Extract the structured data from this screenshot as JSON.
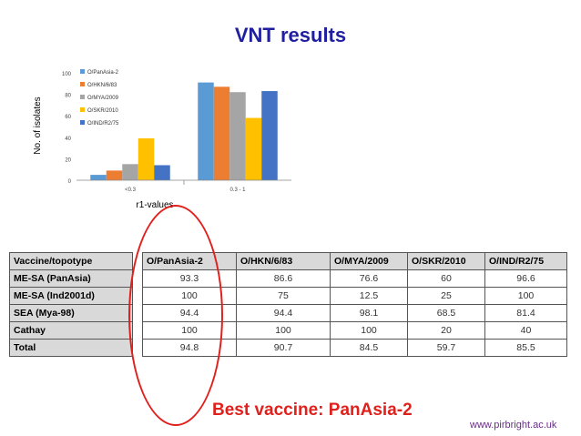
{
  "title": "VNT results",
  "chart_data": {
    "type": "bar",
    "categories": [
      "<0.3",
      "0.3 - 1"
    ],
    "series": [
      {
        "name": "O/PanAsia-2",
        "values": [
          5,
          91
        ],
        "color": "#5b9bd5"
      },
      {
        "name": "O/HKN/6/83",
        "values": [
          9,
          87
        ],
        "color": "#ed7d31"
      },
      {
        "name": "O/MYA/2009",
        "values": [
          15,
          82
        ],
        "color": "#a5a5a5"
      },
      {
        "name": "O/SKR/2010",
        "values": [
          39,
          58
        ],
        "color": "#ffc000"
      },
      {
        "name": "O/IND/R2/75",
        "values": [
          14,
          83
        ],
        "color": "#4472c4"
      }
    ],
    "ylabel": "No. of isolates",
    "xlabel": "r1-values",
    "ylim": [
      0,
      100
    ],
    "yticks": [
      "0",
      "20",
      "40",
      "60",
      "80",
      "100"
    ],
    "legend_position": "top-left"
  },
  "table": {
    "headers": [
      "Vaccine/topotype",
      "O/PanAsia-2",
      "O/HKN/6/83",
      "O/MYA/2009",
      "O/SKR/2010",
      "O/IND/R2/75"
    ],
    "rows": [
      {
        "label": "ME-SA (PanAsia)",
        "values": [
          "93.3",
          "86.6",
          "76.6",
          "60",
          "96.6"
        ]
      },
      {
        "label": "ME-SA (Ind2001d)",
        "values": [
          "100",
          "75",
          "12.5",
          "25",
          "100"
        ]
      },
      {
        "label": "SEA (Mya-98)",
        "values": [
          "94.4",
          "94.4",
          "98.1",
          "68.5",
          "81.4"
        ]
      },
      {
        "label": "Cathay",
        "values": [
          "100",
          "100",
          "100",
          "20",
          "40"
        ]
      },
      {
        "label": "Total",
        "values": [
          "94.8",
          "90.7",
          "84.5",
          "59.7",
          "85.5"
        ]
      }
    ]
  },
  "best_vaccine": "Best vaccine: PanAsia-2",
  "website": "www.pirbright.ac.uk"
}
